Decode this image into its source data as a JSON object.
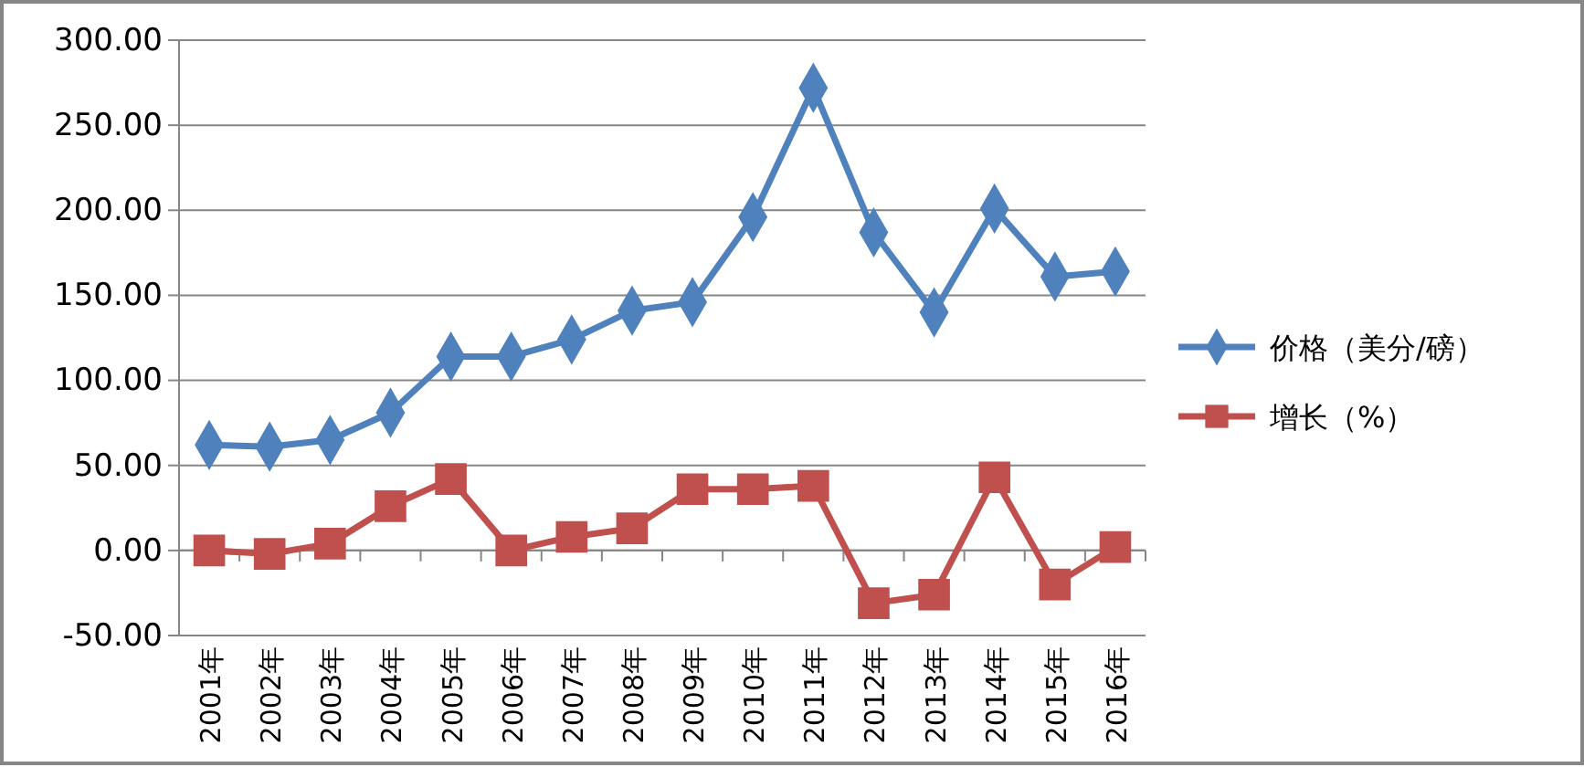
{
  "chart_data": {
    "type": "line",
    "categories": [
      "2001年",
      "2002年",
      "2003年",
      "2004年",
      "2005年",
      "2006年",
      "2007年",
      "2008年",
      "2009年",
      "2010年",
      "2011年",
      "2012年",
      "2013年",
      "2014年",
      "2015年",
      "2016年"
    ],
    "series": [
      {
        "name": "价格（美分/磅）",
        "color": "#4f81bd",
        "marker": "diamond",
        "values": [
          62,
          61,
          65,
          81,
          114,
          114,
          124,
          141,
          146,
          196,
          272,
          187,
          140,
          201,
          161,
          164
        ]
      },
      {
        "name": "增长（%）",
        "color": "#c0504d",
        "marker": "square",
        "values": [
          0,
          -2,
          4,
          26,
          42,
          0,
          8,
          13,
          36,
          36,
          38,
          -31,
          -26,
          43,
          -20,
          2
        ]
      }
    ],
    "ylim": [
      -50,
      300
    ],
    "yticks": [
      {
        "value": -50,
        "label": "-50.00"
      },
      {
        "value": 0,
        "label": "0.00"
      },
      {
        "value": 50,
        "label": "50.00"
      },
      {
        "value": 100,
        "label": "100.00"
      },
      {
        "value": 150,
        "label": "150.00"
      },
      {
        "value": 200,
        "label": "200.00"
      },
      {
        "value": 250,
        "label": "250.00"
      },
      {
        "value": 300,
        "label": "300.00"
      }
    ],
    "grid": "y",
    "legend": "right"
  }
}
